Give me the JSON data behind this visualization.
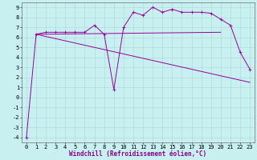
{
  "xlabel": "Windchill (Refroidissement éolien,°C)",
  "bg_color": "#c8f0f0",
  "grid_color": "#a8d8d8",
  "line_color": "#990099",
  "xlim": [
    -0.5,
    23.5
  ],
  "ylim": [
    -4.5,
    9.5
  ],
  "xticks": [
    0,
    1,
    2,
    3,
    4,
    5,
    6,
    7,
    8,
    9,
    10,
    11,
    12,
    13,
    14,
    15,
    16,
    17,
    18,
    19,
    20,
    21,
    22,
    23
  ],
  "yticks": [
    -4,
    -3,
    -2,
    -1,
    0,
    1,
    2,
    3,
    4,
    5,
    6,
    7,
    8,
    9
  ],
  "line1_x": [
    0,
    1,
    2,
    3,
    4,
    5,
    6,
    7,
    8,
    9,
    10,
    11,
    12,
    13,
    14,
    15,
    16,
    17,
    18,
    19,
    20,
    21,
    22,
    23
  ],
  "line1_y": [
    -4.0,
    6.3,
    6.5,
    6.5,
    6.5,
    6.5,
    6.5,
    7.2,
    6.3,
    0.8,
    7.0,
    8.5,
    8.2,
    9.0,
    8.5,
    8.8,
    8.5,
    8.5,
    8.5,
    8.4,
    7.8,
    7.2,
    4.5,
    2.8
  ],
  "line2_x": [
    1,
    23
  ],
  "line2_y": [
    6.3,
    1.5
  ],
  "line3_x": [
    1,
    20
  ],
  "line3_y": [
    6.3,
    6.5
  ],
  "xlabel_color": "#880088",
  "xlabel_fontsize": 5.5,
  "tick_fontsize": 5.0,
  "linewidth": 0.7,
  "marker_size": 2.5
}
